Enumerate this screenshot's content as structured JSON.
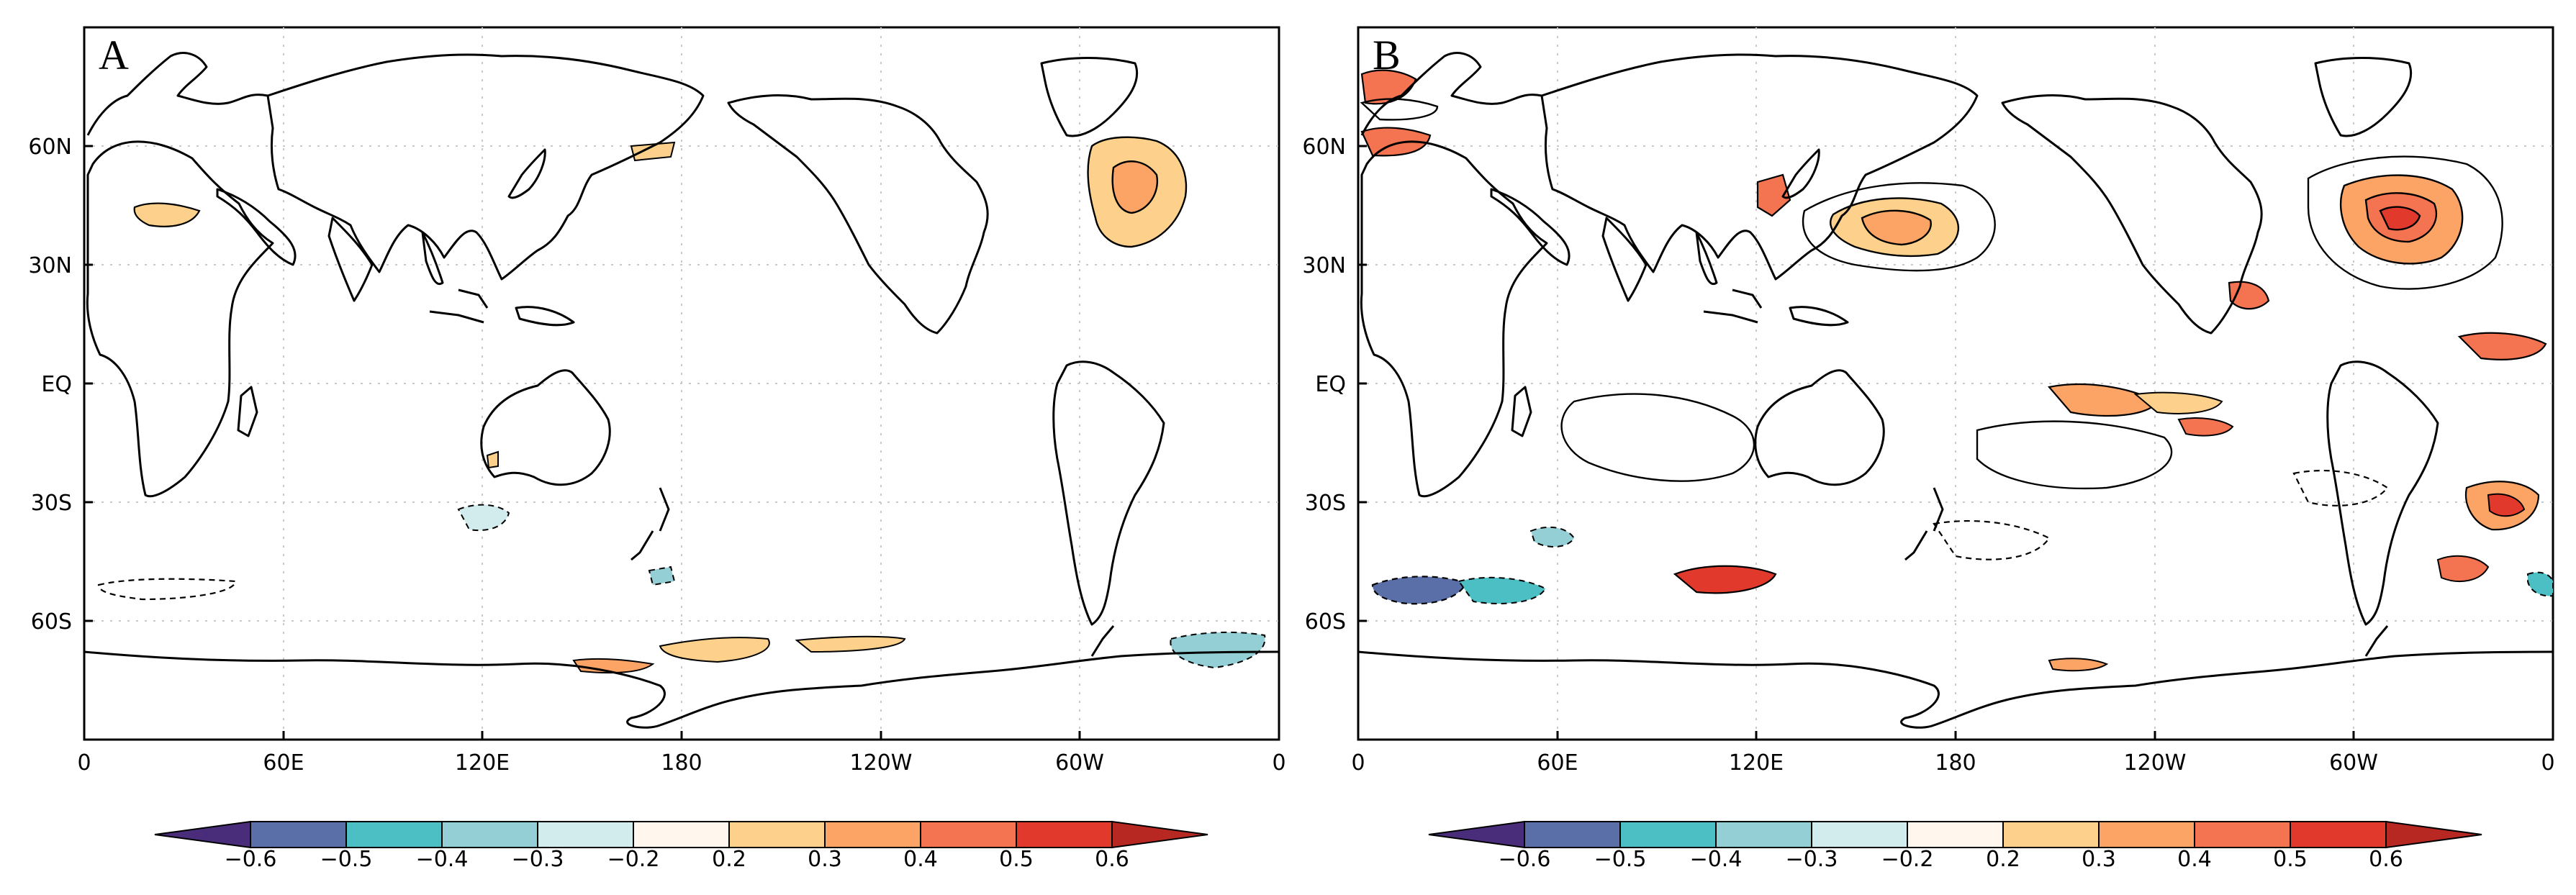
{
  "figure": {
    "panels": [
      {
        "id": "A",
        "label": "A",
        "lat_ticks": [
          "60N",
          "30N",
          "EQ",
          "30S",
          "60S"
        ],
        "lon_ticks": [
          "0",
          "60E",
          "120E",
          "180",
          "120W",
          "60W",
          "0"
        ],
        "colorbar_labels": [
          "−0.6",
          "−0.5",
          "−0.4",
          "−0.3",
          "−0.2",
          "0.2",
          "0.3",
          "0.4",
          "0.5",
          "0.6"
        ]
      },
      {
        "id": "B",
        "label": "B",
        "lat_ticks": [
          "60N",
          "30N",
          "EQ",
          "30S",
          "60S"
        ],
        "lon_ticks": [
          "0",
          "60E",
          "120E",
          "180",
          "120W",
          "60W",
          "0"
        ],
        "colorbar_labels": [
          "−0.6",
          "−0.5",
          "−0.4",
          "−0.3",
          "−0.2",
          "0.2",
          "0.3",
          "0.4",
          "0.5",
          "0.6"
        ]
      }
    ],
    "colorbar_colors": [
      "#4a2d7a",
      "#5a6fa8",
      "#4bbfc4",
      "#93cfd5",
      "#d2ecee",
      "#fff6ee",
      "#fdd18b",
      "#fca466",
      "#f47452",
      "#e13a2c",
      "#b82823"
    ],
    "colorbar_levels": [
      -0.6,
      -0.5,
      -0.4,
      -0.3,
      -0.2,
      0.2,
      0.3,
      0.4,
      0.5,
      0.6
    ]
  }
}
